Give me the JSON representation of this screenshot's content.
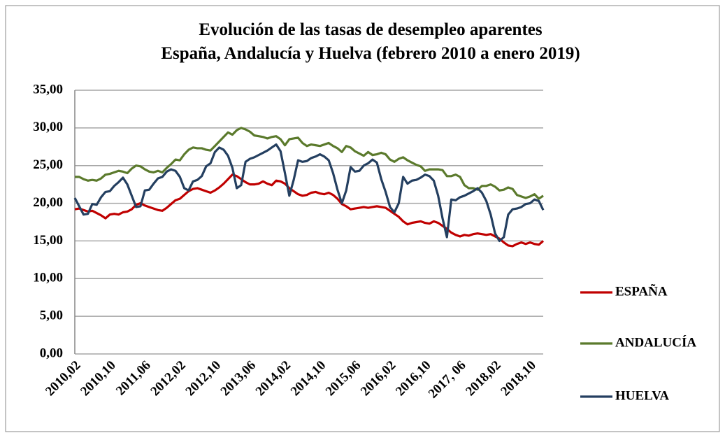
{
  "chart_data": {
    "type": "line",
    "title": "Evolución de las tasas de desempleo aparentes",
    "subtitle": "España, Andalucía y Huelva (febrero 2010 a enero 2019)",
    "categories": [
      "2010,02",
      null,
      null,
      null,
      null,
      null,
      null,
      null,
      "2010,10",
      null,
      null,
      null,
      null,
      null,
      null,
      null,
      "2011,06",
      null,
      null,
      null,
      null,
      null,
      null,
      null,
      "2012,02",
      null,
      null,
      null,
      null,
      null,
      null,
      null,
      "2012,10",
      null,
      null,
      null,
      null,
      null,
      null,
      null,
      "2013,06",
      null,
      null,
      null,
      null,
      null,
      null,
      null,
      "2014,02",
      null,
      null,
      null,
      null,
      null,
      null,
      null,
      "2014,10",
      null,
      null,
      null,
      null,
      null,
      null,
      null,
      "2015,06",
      null,
      null,
      null,
      null,
      null,
      null,
      null,
      "2016,02",
      null,
      null,
      null,
      null,
      null,
      null,
      null,
      "2016,10",
      null,
      null,
      null,
      null,
      null,
      null,
      null,
      "2017, 06",
      null,
      null,
      null,
      null,
      null,
      null,
      null,
      "2018,02",
      null,
      null,
      null,
      null,
      null,
      null,
      null,
      "2018,10",
      null,
      null,
      null
    ],
    "series": [
      {
        "name": "ESPAÑA",
        "color": "#c00000",
        "values": [
          19.2,
          19.3,
          19.1,
          18.9,
          19.0,
          18.7,
          18.4,
          18.0,
          18.5,
          18.6,
          18.5,
          18.8,
          18.9,
          19.2,
          19.8,
          20.0,
          19.7,
          19.5,
          19.3,
          19.1,
          19.0,
          19.4,
          19.9,
          20.4,
          20.6,
          21.1,
          21.6,
          21.9,
          22.0,
          21.8,
          21.6,
          21.4,
          21.7,
          22.1,
          22.6,
          23.2,
          23.8,
          23.6,
          23.2,
          22.8,
          22.5,
          22.5,
          22.6,
          22.9,
          22.6,
          22.4,
          23.0,
          22.9,
          22.6,
          22.0,
          21.6,
          21.2,
          21.0,
          21.1,
          21.4,
          21.5,
          21.3,
          21.2,
          21.4,
          21.1,
          20.6,
          19.9,
          19.6,
          19.2,
          19.3,
          19.4,
          19.5,
          19.4,
          19.5,
          19.6,
          19.5,
          19.4,
          19.0,
          18.6,
          18.2,
          17.6,
          17.2,
          17.4,
          17.5,
          17.6,
          17.4,
          17.3,
          17.6,
          17.4,
          17.0,
          16.6,
          16.1,
          15.8,
          15.6,
          15.8,
          15.7,
          15.9,
          16.0,
          15.9,
          15.8,
          15.9,
          15.6,
          15.3,
          14.8,
          14.4,
          14.3,
          14.6,
          14.8,
          14.6,
          14.8,
          14.6,
          14.5,
          15.0
        ]
      },
      {
        "name": "ANDALUCÍA",
        "color": "#5b7a2c",
        "values": [
          23.5,
          23.5,
          23.2,
          23.0,
          23.1,
          23.0,
          23.3,
          23.8,
          23.9,
          24.1,
          24.3,
          24.2,
          24.0,
          24.6,
          25.0,
          24.9,
          24.5,
          24.2,
          24.1,
          24.3,
          24.1,
          24.7,
          25.2,
          25.8,
          25.7,
          26.5,
          27.1,
          27.4,
          27.3,
          27.3,
          27.1,
          27.0,
          27.6,
          28.2,
          28.8,
          29.4,
          29.1,
          29.7,
          30.0,
          29.8,
          29.5,
          29.0,
          28.9,
          28.8,
          28.6,
          28.8,
          28.9,
          28.5,
          27.7,
          28.5,
          28.6,
          28.7,
          28.0,
          27.6,
          27.8,
          27.7,
          27.6,
          27.8,
          28.0,
          27.6,
          27.3,
          26.8,
          27.6,
          27.4,
          26.9,
          26.6,
          26.3,
          26.8,
          26.4,
          26.5,
          26.7,
          26.5,
          25.8,
          25.5,
          25.9,
          26.1,
          25.7,
          25.4,
          25.1,
          24.9,
          24.3,
          24.5,
          24.5,
          24.5,
          24.4,
          23.6,
          23.6,
          23.8,
          23.5,
          22.4,
          22.0,
          22.0,
          21.8,
          22.3,
          22.3,
          22.5,
          22.2,
          21.7,
          21.8,
          22.1,
          21.9,
          21.1,
          20.9,
          20.7,
          20.9,
          21.2,
          20.6,
          21.0
        ]
      },
      {
        "name": "HUELVA",
        "color": "#243f60",
        "values": [
          20.7,
          19.6,
          18.5,
          18.6,
          19.9,
          19.8,
          20.8,
          21.5,
          21.6,
          22.3,
          22.8,
          23.4,
          22.5,
          21.0,
          19.5,
          19.6,
          21.7,
          21.8,
          22.6,
          23.3,
          23.5,
          24.2,
          24.5,
          24.3,
          23.5,
          22.0,
          21.7,
          22.9,
          23.1,
          23.6,
          24.9,
          25.3,
          26.8,
          27.4,
          27.1,
          26.3,
          24.7,
          22.0,
          22.4,
          25.5,
          25.9,
          26.1,
          26.4,
          26.7,
          27.0,
          27.4,
          27.8,
          26.9,
          24.0,
          21.0,
          23.1,
          25.7,
          25.5,
          25.6,
          26.0,
          26.2,
          26.5,
          26.2,
          25.7,
          24.0,
          21.8,
          20.0,
          21.7,
          24.8,
          24.2,
          24.3,
          25.0,
          25.3,
          25.8,
          25.4,
          23.2,
          21.5,
          19.5,
          18.8,
          20.0,
          23.5,
          22.6,
          23.0,
          23.1,
          23.4,
          23.8,
          23.6,
          23.0,
          21.0,
          18.0,
          15.5,
          20.5,
          20.4,
          20.8,
          21.0,
          21.3,
          21.6,
          22.0,
          21.4,
          20.3,
          18.5,
          16.0,
          15.0,
          15.5,
          18.5,
          19.2,
          19.3,
          19.5,
          19.9,
          20.0,
          20.5,
          20.3,
          19.1
        ]
      }
    ],
    "ylim": [
      0,
      35
    ],
    "yticks": [
      {
        "value": 0,
        "label": "0,00"
      },
      {
        "value": 5,
        "label": "5,00"
      },
      {
        "value": 10,
        "label": "10,00"
      },
      {
        "value": 15,
        "label": "15,00"
      },
      {
        "value": 20,
        "label": "20,00"
      },
      {
        "value": 25,
        "label": "25,00"
      },
      {
        "value": 30,
        "label": "30,00"
      },
      {
        "value": 35,
        "label": "35,00"
      }
    ],
    "grid": true,
    "legend": "right"
  }
}
